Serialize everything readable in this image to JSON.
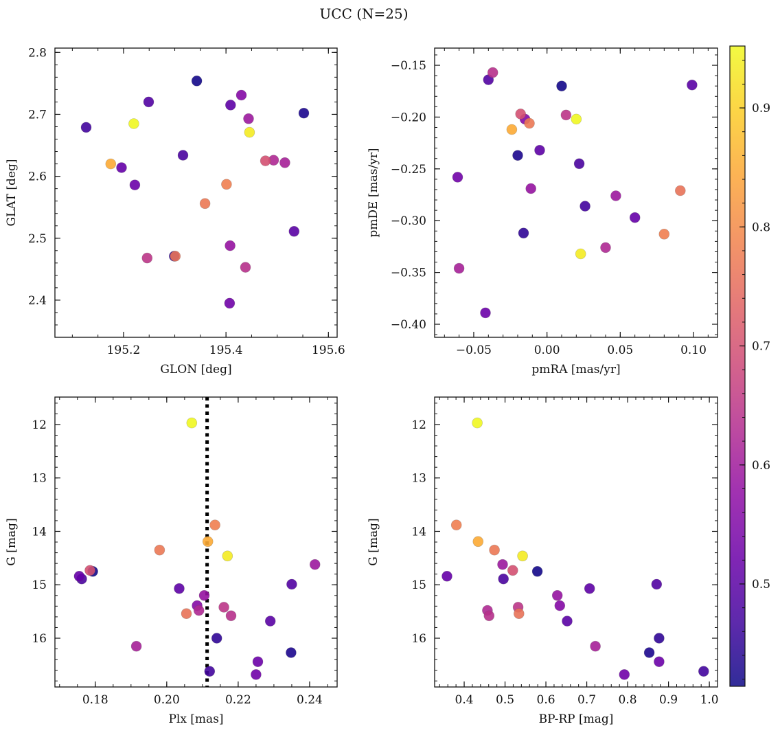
{
  "figure": {
    "title": "UCC (N=25)"
  },
  "chart_data": [
    {
      "id": "glon-glat",
      "type": "scatter",
      "title": "",
      "xlabel": "GLON [deg]",
      "ylabel": "GLAT [deg]",
      "xlim": [
        195.066,
        195.617
      ],
      "ylim": [
        2.34,
        2.807
      ],
      "xticks": [
        195.2,
        195.4,
        195.6
      ],
      "xtick_labels": [
        "195.2",
        "195.4",
        "195.6"
      ],
      "xminor": 0.05,
      "yticks": [
        2.4,
        2.5,
        2.6,
        2.7,
        2.8
      ],
      "ytick_labels": [
        "2.4",
        "2.5",
        "2.6",
        "2.7",
        "2.8"
      ],
      "yminor": 0.02,
      "inverted_y": false,
      "xfield": "glon",
      "yfield": "glat"
    },
    {
      "id": "pmra-pmde",
      "type": "scatter",
      "title": "",
      "xlabel": "pmRA [mas/yr]",
      "ylabel": "pmDE [mas/yr]",
      "xlim": [
        -0.0767,
        0.1164
      ],
      "ylim": [
        -0.4126,
        -0.1334
      ],
      "xticks": [
        -0.05,
        0.0,
        0.05,
        0.1
      ],
      "xtick_labels": [
        "−0.05",
        "0.00",
        "0.05",
        "0.10"
      ],
      "xminor": 0.01,
      "yticks": [
        -0.4,
        -0.35,
        -0.3,
        -0.25,
        -0.2,
        -0.15
      ],
      "ytick_labels": [
        "−0.40",
        "−0.35",
        "−0.30",
        "−0.25",
        "−0.20",
        "−0.15"
      ],
      "yminor": 0.01,
      "inverted_y": false,
      "xfield": "pmra",
      "yfield": "pmde"
    },
    {
      "id": "plx-g",
      "type": "scatter",
      "title": "",
      "xlabel": "Plx [mas]",
      "ylabel": "G [mag]",
      "xlim": [
        0.1687,
        0.2477
      ],
      "ylim": [
        16.913,
        11.486
      ],
      "xticks": [
        0.18,
        0.2,
        0.22,
        0.24
      ],
      "xtick_labels": [
        "0.18",
        "0.20",
        "0.22",
        "0.24"
      ],
      "xminor": 0.005,
      "yticks": [
        12,
        13,
        14,
        15,
        16
      ],
      "ytick_labels": [
        "12",
        "13",
        "14",
        "15",
        "16"
      ],
      "yminor": 0.2,
      "inverted_y": true,
      "xfield": "plx",
      "yfield": "g",
      "vline": {
        "x": 0.2113,
        "style": "dotted",
        "color": "#000000"
      }
    },
    {
      "id": "bprp-g",
      "type": "scatter",
      "title": "",
      "xlabel": "BP-RP [mag]",
      "ylabel": "G [mag]",
      "xlim": [
        0.3277,
        1.02
      ],
      "ylim": [
        16.913,
        11.486
      ],
      "xticks": [
        0.4,
        0.5,
        0.6,
        0.7,
        0.8,
        0.9,
        1.0
      ],
      "xtick_labels": [
        "0.4",
        "0.5",
        "0.6",
        "0.7",
        "0.8",
        "0.9",
        "1.0"
      ],
      "xminor": 0.02,
      "yticks": [
        12,
        13,
        14,
        15,
        16
      ],
      "ytick_labels": [
        "12",
        "13",
        "14",
        "15",
        "16"
      ],
      "yminor": 0.2,
      "inverted_y": true,
      "xfield": "bprp",
      "yfield": "g"
    }
  ],
  "stars": [
    {
      "glon": 195.22,
      "glat": 2.685,
      "pmra": 0.02,
      "pmde": -0.202,
      "plx": 0.207,
      "g": 11.97,
      "bprp": 0.432,
      "prob": 0.95
    },
    {
      "glon": 195.446,
      "glat": 2.671,
      "pmra": 0.023,
      "pmde": -0.332,
      "plx": 0.217,
      "g": 14.46,
      "bprp": 0.543,
      "prob": 0.935
    },
    {
      "glon": 195.175,
      "glat": 2.62,
      "pmra": -0.024,
      "pmde": -0.212,
      "plx": 0.2115,
      "g": 14.19,
      "bprp": 0.434,
      "prob": 0.85
    },
    {
      "glon": 195.401,
      "glat": 2.587,
      "pmra": 0.08,
      "pmde": -0.313,
      "plx": 0.2135,
      "g": 13.88,
      "bprp": 0.381,
      "prob": 0.78
    },
    {
      "glon": 195.359,
      "glat": 2.556,
      "pmra": -0.012,
      "pmde": -0.206,
      "plx": 0.198,
      "g": 14.35,
      "bprp": 0.474,
      "prob": 0.77
    },
    {
      "glon": 195.301,
      "glat": 2.471,
      "pmra": 0.091,
      "pmde": -0.271,
      "plx": 0.2055,
      "g": 15.54,
      "bprp": 0.534,
      "prob": 0.76
    },
    {
      "glon": 195.477,
      "glat": 2.625,
      "pmra": -0.018,
      "pmde": -0.197,
      "plx": 0.1785,
      "g": 14.73,
      "bprp": 0.519,
      "prob": 0.7
    },
    {
      "glon": 195.246,
      "glat": 2.468,
      "pmra": 0.013,
      "pmde": -0.198,
      "plx": 0.216,
      "g": 15.42,
      "bprp": 0.532,
      "prob": 0.65
    },
    {
      "glon": 195.438,
      "glat": 2.453,
      "pmra": -0.037,
      "pmde": -0.157,
      "plx": 0.218,
      "g": 15.58,
      "bprp": 0.461,
      "prob": 0.64
    },
    {
      "glon": 195.493,
      "glat": 2.626,
      "pmra": 0.04,
      "pmde": -0.326,
      "plx": 0.209,
      "g": 15.48,
      "bprp": 0.457,
      "prob": 0.625
    },
    {
      "glon": 195.515,
      "glat": 2.622,
      "pmra": -0.06,
      "pmde": -0.346,
      "plx": 0.1915,
      "g": 16.15,
      "bprp": 0.721,
      "prob": 0.61
    },
    {
      "glon": 195.444,
      "glat": 2.693,
      "pmra": 0.047,
      "pmde": -0.276,
      "plx": 0.2415,
      "g": 14.62,
      "bprp": 0.494,
      "prob": 0.595
    },
    {
      "glon": 195.408,
      "glat": 2.488,
      "pmra": -0.011,
      "pmde": -0.269,
      "plx": 0.2105,
      "g": 15.2,
      "bprp": 0.628,
      "prob": 0.585
    },
    {
      "glon": 195.43,
      "glat": 2.731,
      "pmra": -0.015,
      "pmde": -0.202,
      "plx": 0.2085,
      "g": 15.39,
      "bprp": 0.634,
      "prob": 0.56
    },
    {
      "glon": 195.407,
      "glat": 2.395,
      "pmra": -0.061,
      "pmde": -0.258,
      "plx": 0.225,
      "g": 16.68,
      "bprp": 0.792,
      "prob": 0.53
    },
    {
      "glon": 195.222,
      "glat": 2.586,
      "pmra": -0.042,
      "pmde": -0.389,
      "plx": 0.2255,
      "g": 16.44,
      "bprp": 0.877,
      "prob": 0.525
    },
    {
      "glon": 195.196,
      "glat": 2.614,
      "pmra": 0.06,
      "pmde": -0.297,
      "plx": 0.1755,
      "g": 14.84,
      "bprp": 0.358,
      "prob": 0.515
    },
    {
      "glon": 195.409,
      "glat": 2.715,
      "pmra": -0.005,
      "pmde": -0.232,
      "plx": 0.2035,
      "g": 15.07,
      "bprp": 0.707,
      "prob": 0.505
    },
    {
      "glon": 195.533,
      "glat": 2.511,
      "pmra": 0.099,
      "pmde": -0.169,
      "plx": 0.229,
      "g": 15.68,
      "bprp": 0.652,
      "prob": 0.5
    },
    {
      "glon": 195.249,
      "glat": 2.72,
      "pmra": -0.04,
      "pmde": -0.164,
      "plx": 0.235,
      "g": 14.99,
      "bprp": 0.871,
      "prob": 0.49
    },
    {
      "glon": 195.316,
      "glat": 2.634,
      "pmra": 0.022,
      "pmde": -0.245,
      "plx": 0.1762,
      "g": 14.89,
      "bprp": 0.496,
      "prob": 0.48
    },
    {
      "glon": 195.127,
      "glat": 2.679,
      "pmra": 0.026,
      "pmde": -0.286,
      "plx": 0.212,
      "g": 16.62,
      "bprp": 0.986,
      "prob": 0.47
    },
    {
      "glon": 195.299,
      "glat": 2.471,
      "pmra": -0.016,
      "pmde": -0.312,
      "plx": 0.214,
      "g": 16.0,
      "bprp": 0.877,
      "prob": 0.45
    },
    {
      "glon": 195.552,
      "glat": 2.702,
      "pmra": -0.02,
      "pmde": -0.237,
      "plx": 0.2348,
      "g": 16.27,
      "bprp": 0.853,
      "prob": 0.43
    },
    {
      "glon": 195.343,
      "glat": 2.754,
      "pmra": 0.01,
      "pmde": -0.17,
      "plx": 0.1793,
      "g": 14.75,
      "bprp": 0.579,
      "prob": 0.42
    }
  ],
  "colorbar": {
    "colormap": "plasma",
    "range": [
      0.414,
      0.952
    ],
    "ticks": [
      0.5,
      0.6,
      0.7,
      0.8,
      0.9
    ],
    "tick_labels": [
      "0.5",
      "0.6",
      "0.7",
      "0.8",
      "0.9"
    ],
    "minor": 0.02
  }
}
